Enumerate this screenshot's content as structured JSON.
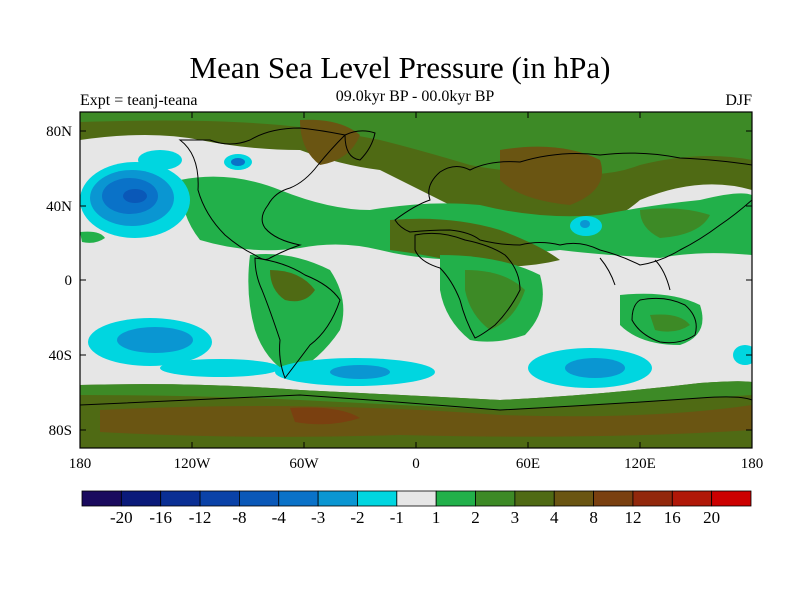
{
  "title": "Mean Sea Level Pressure (in hPa)",
  "left_label": "Expt = teanj-teana",
  "center_label": "09.0kyr BP - 00.0kyr BP",
  "right_label": "DJF",
  "lat_labels": [
    "80N",
    "40N",
    "0",
    "40S",
    "80S"
  ],
  "lon_labels": [
    "180",
    "120W",
    "60W",
    "0",
    "60E",
    "120E",
    "180"
  ],
  "colorbar": {
    "colors": [
      "#1a0a5e",
      "#0a1a7a",
      "#0a2f94",
      "#0a42a8",
      "#0a58b8",
      "#0a72c8",
      "#0a96d2",
      "#00d6e0",
      "#e6e6e6",
      "#22b04a",
      "#3d8a26",
      "#4f6a14",
      "#6a5512",
      "#7a4010",
      "#92280c",
      "#b01808",
      "#cc0000"
    ],
    "labels": [
      "-20",
      "-16",
      "-12",
      "-8",
      "-4",
      "-3",
      "-2",
      "-1",
      "1",
      "2",
      "3",
      "4",
      "8",
      "12",
      "16",
      "20"
    ]
  }
}
